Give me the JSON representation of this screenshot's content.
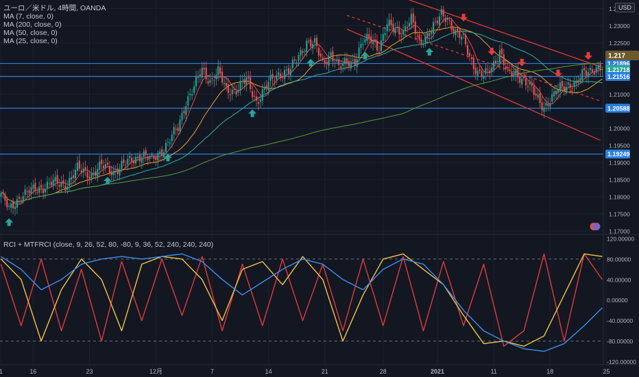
{
  "title": "ユーロ／米ドル, 4時間, OANDA",
  "currency_button": "USD",
  "indicators": [
    {
      "label": "MA (7, close, 0)",
      "color": "#e8454a"
    },
    {
      "label": "MA (200, close, 0)",
      "color": "#5b9c3b"
    },
    {
      "label": "MA (50, close, 0)",
      "color": "#2ab3a6"
    },
    {
      "label": "MA (25, close, 0)",
      "color": "#e6a52a"
    }
  ],
  "rci_label": "RCI + MTFRCI (close, 9, 26, 52, 80, -80, 9, 36, 52, 240, 240, 240)",
  "colors": {
    "background": "#131722",
    "up": "#26a69a",
    "down": "#ef5350",
    "hline": "#2a7fe0",
    "channel": "#e23b3b",
    "buy_arrow": "#26a69a",
    "sell_arrow": "#e23b3b"
  },
  "chart_data": [
    {
      "type": "candlestick",
      "title": "ユーロ／米ドル, 4時間, OANDA",
      "x_ticks": [
        "1",
        "16",
        "23",
        "12月",
        "7",
        "14",
        "21",
        "28",
        "2021",
        "11",
        "18",
        "25"
      ],
      "y_ticks": [
        "1.23500",
        "1.23000",
        "1.22500",
        "1.21896",
        "1.21718",
        "1.21516",
        "1.21000",
        "1.20588",
        "1.20000",
        "1.19500",
        "1.19249",
        "1.19000",
        "1.18500",
        "1.18000",
        "1.17500",
        "1.17000"
      ],
      "ylim": [
        1.169,
        1.2375
      ],
      "horizontal_levels": [
        1.21896,
        1.21516,
        1.20588,
        1.19249
      ],
      "price_labels": [
        {
          "text": "1.21896",
          "color": "#2a7fe0"
        },
        {
          "text": "1.21718",
          "color": "#26a69a"
        },
        {
          "text": "1.21516",
          "color": "#2a7fe0"
        },
        {
          "text": "1.20588",
          "color": "#2a7fe0"
        },
        {
          "text": "1.19249",
          "color": "#2a7fe0"
        }
      ],
      "last_price_label": "1.217",
      "close_path": [
        [
          0,
          1.181
        ],
        [
          4,
          1.176
        ],
        [
          10,
          1.1805
        ],
        [
          17,
          1.182
        ],
        [
          25,
          1.184
        ],
        [
          32,
          1.1835
        ],
        [
          38,
          1.188
        ],
        [
          45,
          1.1865
        ],
        [
          50,
          1.189
        ],
        [
          56,
          1.1875
        ],
        [
          63,
          1.19
        ],
        [
          70,
          1.1925
        ],
        [
          75,
          1.1905
        ],
        [
          82,
          1.195
        ],
        [
          88,
          1.2
        ],
        [
          92,
          1.208
        ],
        [
          96,
          1.212
        ],
        [
          100,
          1.217
        ],
        [
          104,
          1.214
        ],
        [
          108,
          1.2165
        ],
        [
          112,
          1.211
        ],
        [
          117,
          1.2115
        ],
        [
          122,
          1.214
        ],
        [
          127,
          1.208
        ],
        [
          133,
          1.213
        ],
        [
          138,
          1.216
        ],
        [
          144,
          1.217
        ],
        [
          148,
          1.221
        ],
        [
          152,
          1.2255
        ],
        [
          156,
          1.2245
        ],
        [
          160,
          1.219
        ],
        [
          164,
          1.222
        ],
        [
          168,
          1.2175
        ],
        [
          172,
          1.2195
        ],
        [
          176,
          1.22
        ],
        [
          180,
          1.225
        ],
        [
          184,
          1.2265
        ],
        [
          188,
          1.2235
        ],
        [
          192,
          1.23
        ],
        [
          196,
          1.229
        ],
        [
          200,
          1.2285
        ],
        [
          204,
          1.2315
        ],
        [
          208,
          1.225
        ],
        [
          212,
          1.2275
        ],
        [
          216,
          1.23
        ],
        [
          219,
          1.2335
        ],
        [
          222,
          1.2325
        ],
        [
          226,
          1.2275
        ],
        [
          230,
          1.226
        ],
        [
          234,
          1.22
        ],
        [
          237,
          1.216
        ],
        [
          240,
          1.215
        ],
        [
          244,
          1.218
        ],
        [
          248,
          1.2225
        ],
        [
          252,
          1.2155
        ],
        [
          256,
          1.2165
        ],
        [
          260,
          1.214
        ],
        [
          264,
          1.211
        ],
        [
          268,
          1.208
        ],
        [
          270,
          1.2065
        ],
        [
          274,
          1.2085
        ],
        [
          278,
          1.212
        ],
        [
          282,
          1.213
        ],
        [
          286,
          1.2125
        ],
        [
          290,
          1.2165
        ],
        [
          294,
          1.2175
        ],
        [
          298,
          1.2172
        ]
      ],
      "buy_arrows_at_bar": [
        4,
        53,
        83,
        125,
        154,
        181,
        213
      ],
      "sell_arrows_at_bar": [
        230,
        244,
        259,
        277,
        292
      ],
      "series": [
        {
          "name": "MA (7, close, 0)",
          "period": 7,
          "color": "#e8454a"
        },
        {
          "name": "MA (25, close, 0)",
          "period": 25,
          "color": "#e6a52a"
        },
        {
          "name": "MA (50, close, 0)",
          "period": 50,
          "color": "#2ab3a6"
        },
        {
          "name": "MA (200, close, 0)",
          "period": 200,
          "color": "#5b9c3b"
        }
      ]
    },
    {
      "type": "line",
      "title": "RCI + MTFRCI (close, 9, 26, 52, 80, -80, 9, 36, 52, 240, 240, 240)",
      "y_ticks": [
        "120.00000",
        "80.00000",
        "40.00000",
        "0.00000",
        "-40.00000",
        "-80.00000",
        "-120.00000"
      ],
      "ylim": [
        -126,
        128
      ],
      "reference_lines": [
        80,
        -80
      ],
      "series": [
        {
          "name": "RCI 9",
          "color": "#e23b3b",
          "x": [
            0,
            10,
            20,
            30,
            40,
            50,
            60,
            70,
            80,
            90,
            100,
            110,
            120,
            130,
            140,
            150,
            160,
            170,
            180,
            190,
            200,
            210,
            220,
            230,
            240,
            250,
            260,
            270,
            280,
            290,
            300
          ],
          "values": [
            70,
            -50,
            80,
            -60,
            60,
            -80,
            75,
            -40,
            80,
            -30,
            85,
            -60,
            70,
            -50,
            80,
            -40,
            70,
            -60,
            80,
            -50,
            85,
            -60,
            75,
            -50,
            70,
            -90,
            -60,
            90,
            -80,
            90,
            40
          ]
        },
        {
          "name": "RCI 26",
          "color": "#f5c542",
          "x": [
            0,
            10,
            20,
            30,
            40,
            50,
            60,
            70,
            80,
            90,
            100,
            110,
            120,
            130,
            140,
            150,
            160,
            170,
            180,
            190,
            200,
            210,
            220,
            230,
            240,
            250,
            260,
            270,
            280,
            290,
            300
          ],
          "values": [
            80,
            40,
            -80,
            20,
            80,
            40,
            -60,
            70,
            85,
            80,
            40,
            -40,
            60,
            75,
            30,
            85,
            40,
            -80,
            10,
            80,
            90,
            60,
            30,
            -30,
            -85,
            -80,
            -90,
            -70,
            10,
            90,
            85
          ]
        },
        {
          "name": "RCI 52",
          "color": "#3a8ff0",
          "x": [
            0,
            10,
            20,
            30,
            40,
            50,
            60,
            70,
            80,
            90,
            100,
            110,
            120,
            130,
            140,
            150,
            160,
            170,
            180,
            190,
            200,
            210,
            220,
            230,
            240,
            250,
            260,
            270,
            280,
            290,
            300
          ],
          "values": [
            85,
            60,
            20,
            40,
            70,
            80,
            85,
            80,
            85,
            90,
            75,
            40,
            10,
            35,
            60,
            80,
            70,
            40,
            20,
            60,
            80,
            70,
            30,
            -20,
            -60,
            -80,
            -95,
            -100,
            -85,
            -50,
            -15
          ]
        }
      ]
    }
  ]
}
